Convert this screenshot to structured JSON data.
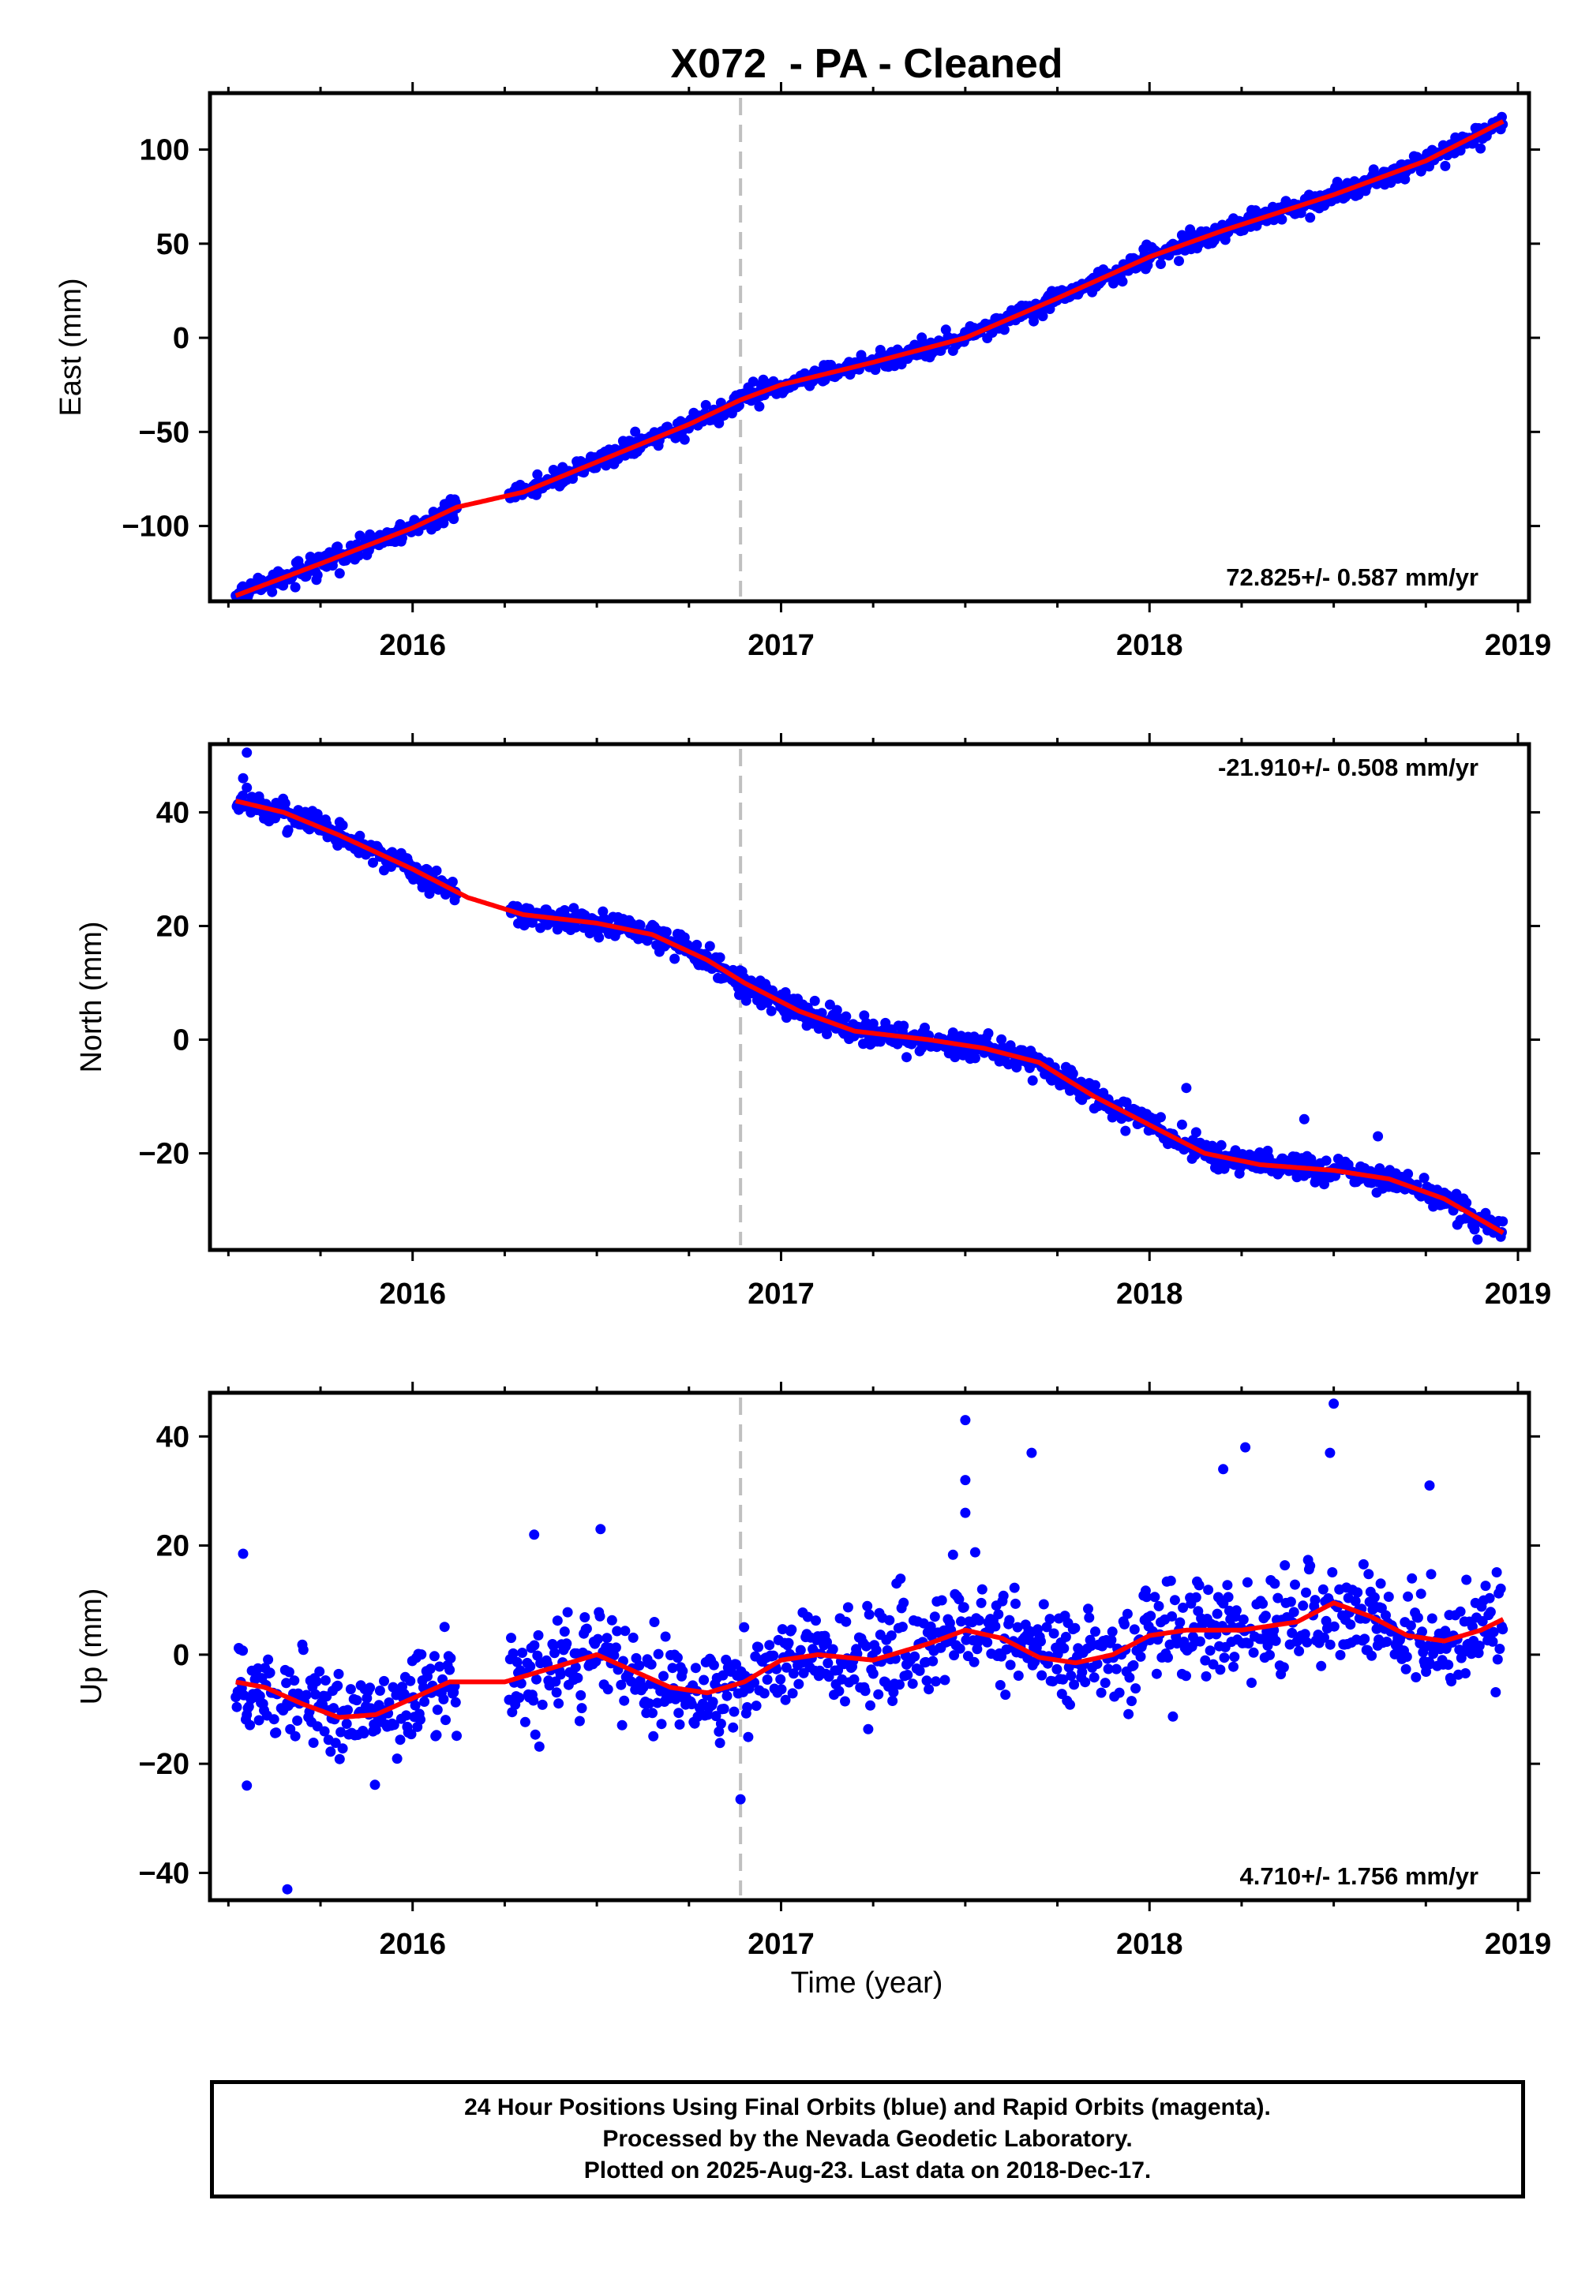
{
  "title": "X072  - PA - Cleaned",
  "xlabel": "Time (year)",
  "footer": {
    "line1": "24 Hour Positions Using Final Orbits (blue) and Rapid Orbits (magenta).",
    "line2": "Processed by the Nevada Geodetic Laboratory.",
    "line3": "Plotted on 2025-Aug-23. Last data on 2018-Dec-17."
  },
  "colors": {
    "data_points": "#0000ff",
    "model": "#ff0000",
    "event_line": "#c0c0c0",
    "axes": "#000000"
  },
  "chart_data": [
    {
      "type": "scatter",
      "ylabel": "East (mm)",
      "rate_label": "72.825+/- 0.587 mm/yr",
      "rate_position": "bottom-right",
      "xlim": [
        2015.45,
        2019.03
      ],
      "ylim": [
        -140,
        130
      ],
      "xticks": [
        "2016",
        "2017",
        "2018",
        "2019"
      ],
      "yticks": [
        "100",
        "50",
        "0",
        "−50",
        "−100"
      ],
      "ytick_values": [
        100,
        50,
        0,
        -50,
        -100
      ],
      "event_line_x": 2016.89,
      "model": {
        "x": [
          2015.52,
          2015.75,
          2016.0,
          2016.12,
          2016.3,
          2016.5,
          2016.75,
          2016.89,
          2017.0,
          2017.25,
          2017.5,
          2017.75,
          2018.0,
          2018.2,
          2018.5,
          2018.75,
          2018.96
        ],
        "y": [
          -137,
          -120,
          -101,
          -90,
          -82,
          -66,
          -46,
          -33,
          -25,
          -13,
          0,
          21,
          43,
          57,
          76,
          94,
          115
        ]
      },
      "series": [
        {
          "name": "",
          "noise_mm": 2.6,
          "gaps": [
            [
              2016.12,
              2016.26
            ]
          ]
        }
      ]
    },
    {
      "type": "scatter",
      "ylabel": "North (mm)",
      "rate_label": "-21.910+/- 0.508 mm/yr",
      "rate_position": "top-right",
      "xlim": [
        2015.45,
        2019.03
      ],
      "ylim": [
        -37,
        52
      ],
      "xticks": [
        "2016",
        "2017",
        "2018",
        "2019"
      ],
      "yticks": [
        "40",
        "20",
        "0",
        "−20"
      ],
      "ytick_values": [
        40,
        20,
        0,
        -20
      ],
      "event_line_x": 2016.89,
      "model": {
        "x": [
          2015.52,
          2015.65,
          2015.8,
          2016.0,
          2016.15,
          2016.3,
          2016.5,
          2016.65,
          2016.8,
          2016.9,
          2017.05,
          2017.2,
          2017.4,
          2017.55,
          2017.7,
          2017.85,
          2018.0,
          2018.15,
          2018.3,
          2018.5,
          2018.65,
          2018.8,
          2018.96
        ],
        "y": [
          42,
          40,
          36,
          30,
          25,
          22,
          20.5,
          18.5,
          14,
          10,
          5,
          1.5,
          0,
          -1.5,
          -4,
          -10,
          -15,
          -20,
          -22,
          -23,
          -24.5,
          -28,
          -34
        ]
      },
      "series": [
        {
          "name": "",
          "noise_mm": 1.1,
          "gaps": [
            [
              2016.12,
              2016.26
            ]
          ]
        }
      ],
      "extra_points": [
        [
          2015.55,
          50.5
        ],
        [
          2015.54,
          46
        ],
        [
          2018.1,
          -8.5
        ],
        [
          2018.42,
          -14
        ],
        [
          2018.62,
          -17
        ]
      ]
    },
    {
      "type": "scatter",
      "ylabel": "Up (mm)",
      "rate_label": "4.710+/- 1.756 mm/yr",
      "rate_position": "bottom-right",
      "xlim": [
        2015.45,
        2019.03
      ],
      "ylim": [
        -45,
        48
      ],
      "xticks": [
        "2016",
        "2017",
        "2018",
        "2019"
      ],
      "yticks": [
        "40",
        "20",
        "0",
        "−20",
        "−40"
      ],
      "ytick_values": [
        40,
        20,
        0,
        -20,
        -40
      ],
      "event_line_x": 2016.89,
      "model": {
        "x": [
          2015.52,
          2015.6,
          2015.7,
          2015.8,
          2015.9,
          2016.0,
          2016.1,
          2016.25,
          2016.35,
          2016.5,
          2016.6,
          2016.7,
          2016.8,
          2016.9,
          2017.0,
          2017.1,
          2017.25,
          2017.4,
          2017.5,
          2017.6,
          2017.7,
          2017.8,
          2017.9,
          2018.0,
          2018.1,
          2018.25,
          2018.4,
          2018.5,
          2018.6,
          2018.7,
          2018.8,
          2018.9,
          2018.96
        ],
        "y": [
          -5,
          -6,
          -9,
          -11.5,
          -11,
          -8,
          -5,
          -5,
          -3,
          0,
          -3,
          -6,
          -7,
          -5,
          -1,
          0,
          -1,
          2,
          4.5,
          3,
          -0.5,
          -1.5,
          0,
          3.5,
          4.5,
          4.5,
          6,
          9.5,
          7,
          3.5,
          2.5,
          4.5,
          6.5
        ]
      },
      "series": [
        {
          "name": "",
          "noise_mm": 4.5,
          "gaps": [
            [
              2016.12,
              2016.26
            ]
          ]
        }
      ],
      "extra_points": [
        [
          2015.54,
          18.5
        ],
        [
          2015.55,
          -24
        ],
        [
          2015.66,
          -43
        ],
        [
          2016.89,
          -26.5
        ],
        [
          2017.5,
          43
        ],
        [
          2017.5,
          32
        ],
        [
          2017.5,
          26
        ],
        [
          2017.68,
          37
        ],
        [
          2018.5,
          46
        ],
        [
          2018.49,
          37
        ],
        [
          2018.2,
          34
        ],
        [
          2018.26,
          38
        ],
        [
          2018.76,
          31
        ],
        [
          2016.51,
          23
        ],
        [
          2016.33,
          22
        ]
      ]
    }
  ]
}
